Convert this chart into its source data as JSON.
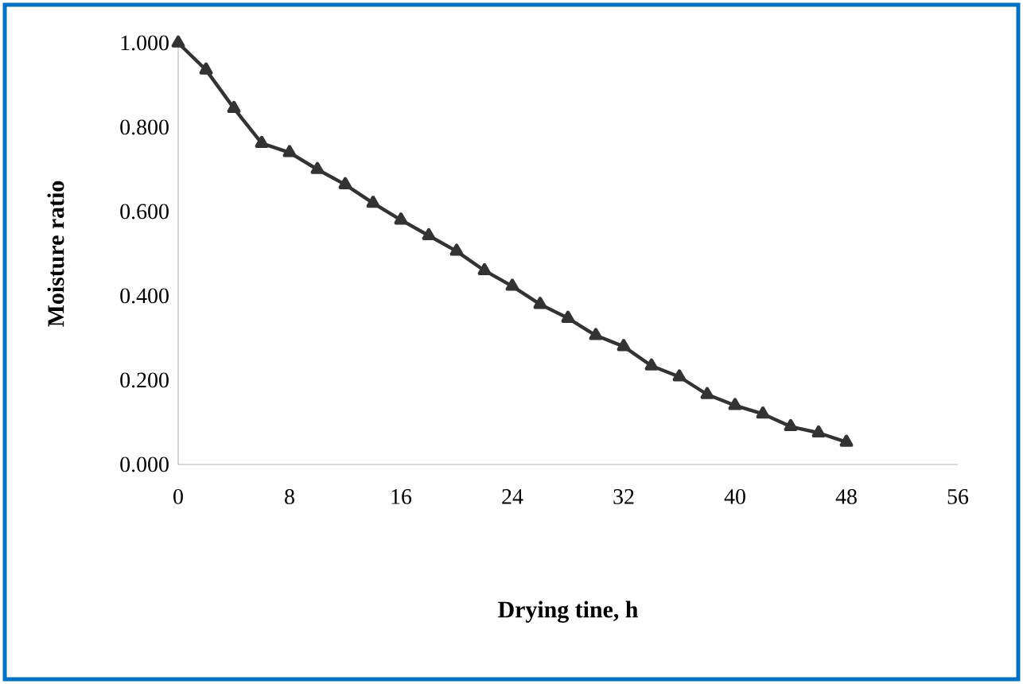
{
  "chart_data": {
    "type": "line",
    "xlabel": "Drying tine, h",
    "ylabel": "Moisture ratio",
    "series": [
      {
        "color": "#333333",
        "marker": "triangle",
        "line_style": "solid",
        "x": [
          0,
          2,
          4,
          6,
          8,
          10,
          12,
          14,
          16,
          18,
          20,
          22,
          24,
          26,
          28,
          30,
          32,
          34,
          36,
          38,
          40,
          42,
          44,
          46,
          48
        ],
        "values": [
          1.0,
          0.936,
          0.845,
          0.762,
          0.74,
          0.7,
          0.664,
          0.62,
          0.58,
          0.543,
          0.506,
          0.46,
          0.423,
          0.38,
          0.347,
          0.306,
          0.28,
          0.234,
          0.208,
          0.166,
          0.14,
          0.12,
          0.09,
          0.075,
          0.053
        ]
      }
    ],
    "xlim": [
      0,
      56
    ],
    "xticks": [
      0,
      8,
      16,
      24,
      32,
      40,
      48,
      56
    ],
    "ylim": [
      0,
      1.0
    ],
    "yticks": [
      {
        "value": 0,
        "label": "0.000"
      },
      {
        "value": 0.2,
        "label": "0.200"
      },
      {
        "value": 0.4,
        "label": "0.400"
      },
      {
        "value": 0.6,
        "label": "0.600"
      },
      {
        "value": 0.8,
        "label": "0.800"
      },
      {
        "value": 1.0,
        "label": "1.000"
      }
    ],
    "grid": false
  }
}
